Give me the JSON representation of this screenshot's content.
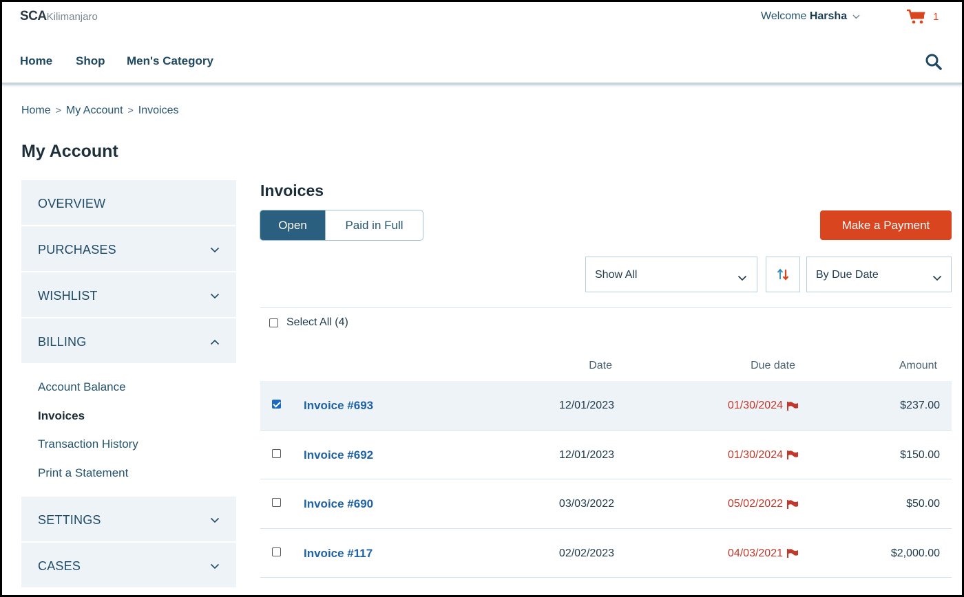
{
  "header": {
    "logo_main": "SCA",
    "logo_sub": "Kilimanjaro",
    "welcome_prefix": "Welcome ",
    "user_name": "Harsha",
    "cart_count": "1",
    "nav": [
      "Home",
      "Shop",
      "Men's Category"
    ]
  },
  "breadcrumb": [
    "Home",
    "My Account",
    "Invoices"
  ],
  "page_title": "My Account",
  "sidebar": {
    "sections": [
      {
        "label": "OVERVIEW",
        "chevron": "none"
      },
      {
        "label": "PURCHASES",
        "chevron": "down"
      },
      {
        "label": "WISHLIST",
        "chevron": "down"
      },
      {
        "label": "BILLING",
        "chevron": "up"
      }
    ],
    "billing_items": [
      "Account Balance",
      "Invoices",
      "Transaction History",
      "Print a Statement"
    ],
    "active_item": "Invoices",
    "bottom_sections": [
      {
        "label": "SETTINGS",
        "chevron": "down"
      },
      {
        "label": "CASES",
        "chevron": "down"
      }
    ]
  },
  "invoices": {
    "title": "Invoices",
    "tabs": {
      "open": "Open",
      "paid": "Paid in Full",
      "active": "open"
    },
    "make_payment": "Make a Payment",
    "filter_value": "Show All",
    "sort_value": "By Due Date",
    "select_all": "Select All (4)",
    "columns": {
      "date": "Date",
      "due": "Due date",
      "amount": "Amount"
    },
    "rows": [
      {
        "name": "Invoice #693",
        "date": "12/01/2023",
        "due": "01/30/2024",
        "amount": "$237.00",
        "checked": true
      },
      {
        "name": "Invoice #692",
        "date": "12/01/2023",
        "due": "01/30/2024",
        "amount": "$150.00",
        "checked": false
      },
      {
        "name": "Invoice #690",
        "date": "03/03/2022",
        "due": "05/02/2022",
        "amount": "$50.00",
        "checked": false
      },
      {
        "name": "Invoice #117",
        "date": "02/02/2023",
        "due": "04/03/2021",
        "amount": "$2,000.00",
        "checked": false
      }
    ]
  },
  "colors": {
    "accent": "#d9451f",
    "primary": "#2a5f80",
    "link": "#1f62a6",
    "overdue": "#c0392b"
  }
}
